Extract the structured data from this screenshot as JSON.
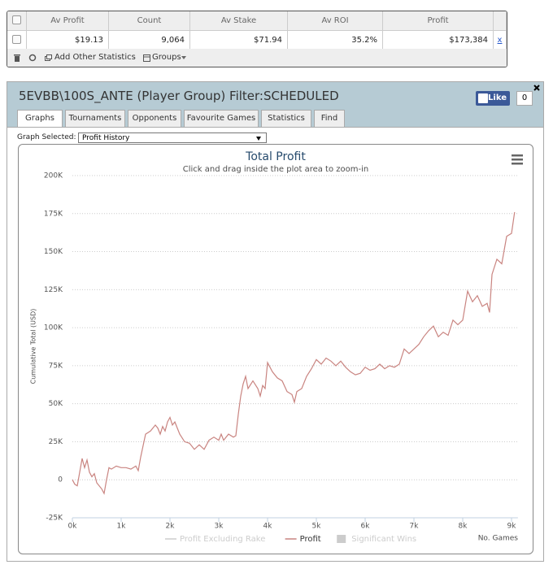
{
  "stats_table": {
    "headers": [
      "Av Profit",
      "Count",
      "Av Stake",
      "Av ROI",
      "Profit"
    ],
    "row": [
      "$19.13",
      "9,064",
      "$71.94",
      "35.2%",
      "$173,384"
    ],
    "remove": "x",
    "toolbar": [
      "Add Other Statistics",
      "Groups"
    ]
  },
  "panel": {
    "title": "5EVBB\\100S_ANTE (Player Group) Filter:SCHEDULED",
    "like": "Like",
    "like_count": "0",
    "tabs": [
      "Graphs",
      "Tournaments",
      "Opponents",
      "Favourite Games",
      "Statistics",
      "Find"
    ],
    "graph_select_label": "Graph Selected:",
    "graph_selected": "Profit History"
  },
  "chart_data": {
    "type": "line",
    "title": "Total Profit",
    "subtitle": "Click and drag inside the plot area to zoom-in",
    "ylabel": "Cumulative Total (USD)",
    "xlabel": "No. Games",
    "x": [
      0,
      50,
      100,
      150,
      200,
      250,
      300,
      350,
      400,
      450,
      500,
      600,
      650,
      700,
      750,
      800,
      900,
      1000,
      1100,
      1200,
      1300,
      1350,
      1400,
      1500,
      1600,
      1700,
      1750,
      1800,
      1850,
      1900,
      1950,
      2000,
      2050,
      2100,
      2200,
      2300,
      2400,
      2500,
      2600,
      2700,
      2800,
      2900,
      3000,
      3050,
      3100,
      3200,
      3300,
      3350,
      3400,
      3450,
      3500,
      3550,
      3600,
      3700,
      3800,
      3850,
      3900,
      3950,
      4000,
      4100,
      4200,
      4300,
      4400,
      4500,
      4550,
      4600,
      4700,
      4800,
      4900,
      5000,
      5100,
      5200,
      5300,
      5400,
      5500,
      5600,
      5700,
      5800,
      5900,
      6000,
      6100,
      6200,
      6300,
      6400,
      6500,
      6600,
      6700,
      6800,
      6900,
      7000,
      7100,
      7200,
      7300,
      7400,
      7500,
      7600,
      7700,
      7800,
      7900,
      8000,
      8100,
      8200,
      8300,
      8400,
      8500,
      8550,
      8600,
      8700,
      8800,
      8900,
      9000,
      9064
    ],
    "series": [
      {
        "name": "Profit",
        "color": "#c98480",
        "values": [
          0,
          -3000,
          -4000,
          5000,
          14000,
          8000,
          13000,
          5000,
          2000,
          4000,
          -2000,
          -6000,
          -9000,
          0,
          8000,
          7000,
          9000,
          8000,
          8000,
          7000,
          9000,
          6000,
          15000,
          30000,
          32000,
          36000,
          34000,
          30000,
          35000,
          32000,
          38000,
          41000,
          36000,
          38000,
          30000,
          25000,
          24000,
          20000,
          23000,
          20000,
          26000,
          28000,
          26000,
          30000,
          26000,
          30000,
          28000,
          29000,
          43000,
          55000,
          63000,
          68000,
          60000,
          65000,
          60000,
          55000,
          62000,
          60000,
          77000,
          71000,
          67000,
          65000,
          58000,
          56000,
          51000,
          58000,
          60000,
          68000,
          73000,
          79000,
          76000,
          80000,
          78000,
          75000,
          78000,
          74000,
          71000,
          69000,
          70000,
          74000,
          72000,
          73000,
          76000,
          73000,
          75000,
          74000,
          76000,
          86000,
          83000,
          86000,
          89000,
          94000,
          98000,
          101000,
          94000,
          97000,
          95000,
          105000,
          102000,
          105000,
          124000,
          117000,
          121000,
          114000,
          116000,
          110000,
          135000,
          145000,
          142000,
          160000,
          162000,
          176000
        ]
      }
    ],
    "inactive_legend": [
      {
        "name": "Profit Excluding Rake",
        "symbol": "line"
      },
      {
        "name": "Significant Wins",
        "symbol": "square"
      }
    ],
    "xlim": [
      0,
      9130
    ],
    "ylim": [
      -25000,
      200000
    ],
    "xticks": [
      {
        "value": 0,
        "label": "0k"
      },
      {
        "value": 1000,
        "label": "1k"
      },
      {
        "value": 2000,
        "label": "2k"
      },
      {
        "value": 3000,
        "label": "3k"
      },
      {
        "value": 4000,
        "label": "4k"
      },
      {
        "value": 5000,
        "label": "5k"
      },
      {
        "value": 6000,
        "label": "6k"
      },
      {
        "value": 7000,
        "label": "7k"
      },
      {
        "value": 8000,
        "label": "8k"
      },
      {
        "value": 9000,
        "label": "9k"
      }
    ],
    "yticks": [
      {
        "value": -25000,
        "label": "-25K"
      },
      0,
      {
        "value": 25000,
        "label": "25K"
      },
      {
        "value": 50000,
        "label": "50K"
      },
      {
        "value": 75000,
        "label": "75K"
      },
      {
        "value": 100000,
        "label": "100K"
      },
      {
        "value": 125000,
        "label": "125K"
      },
      {
        "value": 150000,
        "label": "150K"
      },
      {
        "value": 175000,
        "label": "175K"
      },
      {
        "value": 200000,
        "label": "200K"
      }
    ],
    "grid": true
  }
}
